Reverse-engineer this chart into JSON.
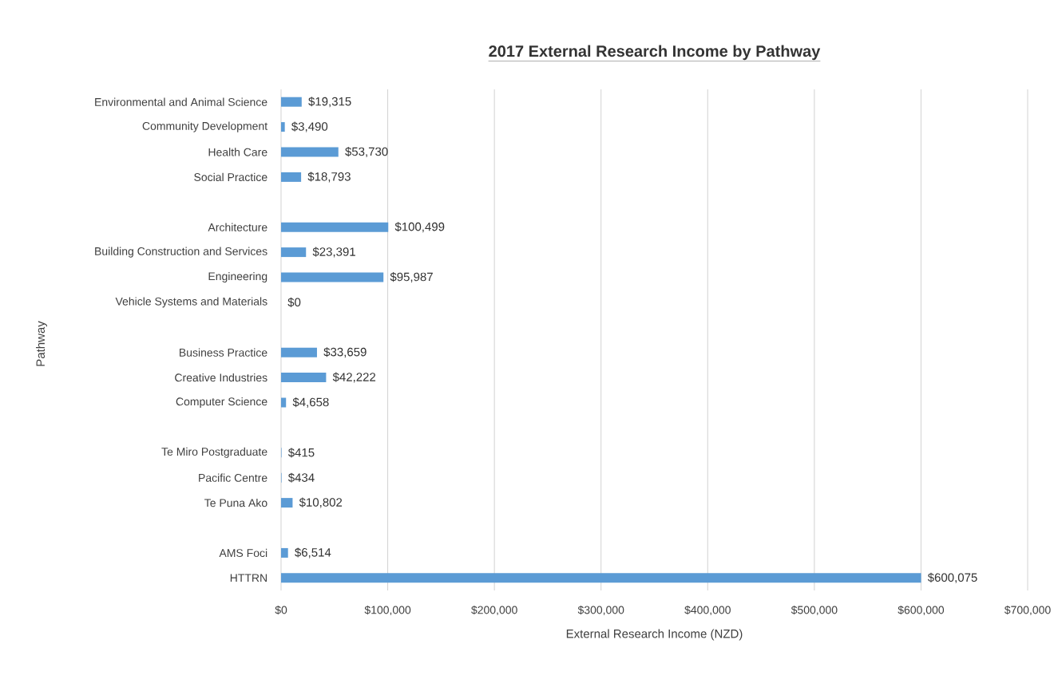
{
  "chart_data": {
    "type": "bar",
    "orientation": "horizontal",
    "title": "2017 External Research Income by Pathway",
    "xlabel": "External Research Income (NZD)",
    "ylabel": "Pathway",
    "categories": [
      "Environmental and Animal Science",
      "Community Development",
      "Health Care",
      "Social Practice",
      null,
      "Architecture",
      "Building Construction and Services",
      "Engineering",
      "Vehicle Systems and Materials",
      null,
      "Business Practice",
      "Creative Industries",
      "Computer Science",
      null,
      "Te Miro Postgraduate",
      "Pacific Centre",
      "Te Puna Ako",
      null,
      "AMS Foci",
      "HTTRN"
    ],
    "values": [
      19315,
      3490,
      53730,
      18793,
      null,
      100499,
      23391,
      95987,
      0,
      null,
      33659,
      42222,
      4658,
      null,
      415,
      434,
      10802,
      null,
      6514,
      600075
    ],
    "value_labels": [
      "$19,315",
      "$3,490",
      "$53,730",
      "$18,793",
      null,
      "$100,499",
      "$23,391",
      "$95,987",
      "$0",
      null,
      "$33,659",
      "$42,222",
      "$4,658",
      null,
      "$415",
      "$434",
      "$10,802",
      null,
      "$6,514",
      "$600,075"
    ],
    "color": "#5b9bd5",
    "xlim": [
      0,
      700000
    ],
    "xticks": [
      {
        "value": 0,
        "label": "$0"
      },
      {
        "value": 100000,
        "label": "$100,000"
      },
      {
        "value": 200000,
        "label": "$200,000"
      },
      {
        "value": 300000,
        "label": "$300,000"
      },
      {
        "value": 400000,
        "label": "$400,000"
      },
      {
        "value": 500000,
        "label": "$500,000"
      },
      {
        "value": 600000,
        "label": "$600,000"
      },
      {
        "value": 700000,
        "label": "$700,000"
      }
    ],
    "grid": "x"
  }
}
